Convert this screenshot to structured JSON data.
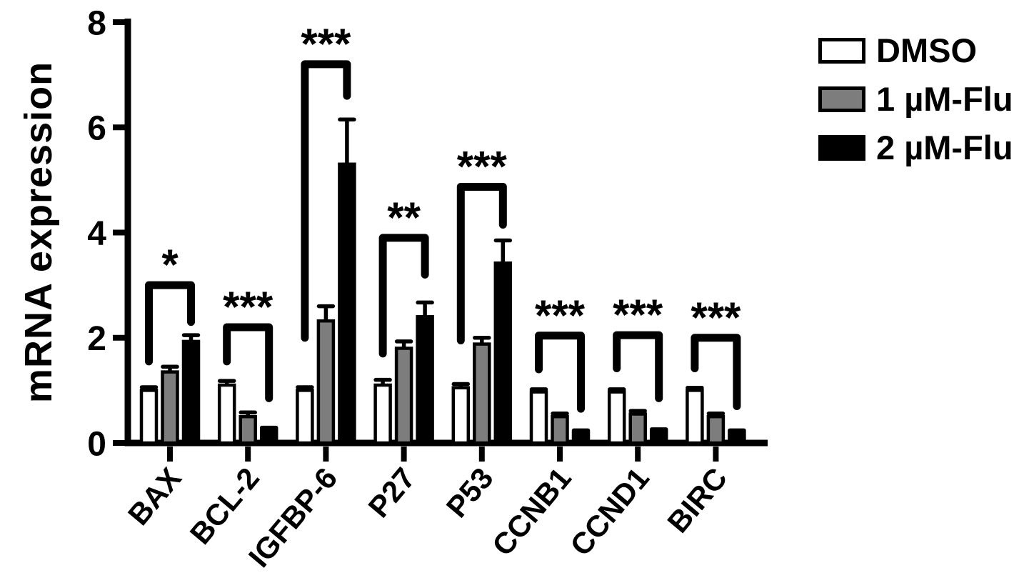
{
  "chart_data": {
    "type": "bar",
    "ylabel": "mRNA expression",
    "xlabel": "",
    "ylim": [
      0,
      8
    ],
    "yticks": [
      0,
      2,
      4,
      6,
      8
    ],
    "grid": false,
    "legend_position": "top-right",
    "categories": [
      "BAX",
      "BCL-2",
      "IGFBP-6",
      "P27",
      "P53",
      "CCNB1",
      "CCND1",
      "BIRC"
    ],
    "series": [
      {
        "name": "DMSO",
        "fill": "#ffffff",
        "values": [
          1.0,
          1.1,
          1.0,
          1.1,
          1.05,
          0.97,
          0.97,
          1.0
        ],
        "errors": [
          0.06,
          0.08,
          0.06,
          0.1,
          0.07,
          0.05,
          0.05,
          0.05
        ]
      },
      {
        "name": "1 µM-Flu",
        "fill": "#7d7d7d",
        "values": [
          1.35,
          0.5,
          2.32,
          1.8,
          1.88,
          0.5,
          0.55,
          0.5
        ],
        "errors": [
          0.1,
          0.08,
          0.28,
          0.13,
          0.12,
          0.06,
          0.06,
          0.06
        ]
      },
      {
        "name": "2 µM-Flu",
        "fill": "#000000",
        "values": [
          1.93,
          0.25,
          5.3,
          2.4,
          3.42,
          0.2,
          0.22,
          0.2
        ],
        "errors": [
          0.12,
          0.04,
          0.85,
          0.27,
          0.43,
          0.04,
          0.04,
          0.04
        ]
      }
    ],
    "significance": [
      {
        "category": "BAX",
        "stars": "*",
        "top": 3.0,
        "left_end": 1.55,
        "right_end": 2.3
      },
      {
        "category": "BCL-2",
        "stars": "***",
        "top": 2.2,
        "left_end": 1.55,
        "right_end": 0.85
      },
      {
        "category": "IGFBP-6",
        "stars": "***",
        "top": 7.2,
        "left_end": 2.0,
        "right_end": 6.6
      },
      {
        "category": "P27",
        "stars": "**",
        "top": 3.9,
        "left_end": 1.7,
        "right_end": 3.2
      },
      {
        "category": "P53",
        "stars": "***",
        "top": 4.87,
        "left_end": 1.95,
        "right_end": 4.15
      },
      {
        "category": "CCNB1",
        "stars": "***",
        "top": 2.04,
        "left_end": 1.4,
        "right_end": 0.65
      },
      {
        "category": "CCND1",
        "stars": "***",
        "top": 2.05,
        "left_end": 1.42,
        "right_end": 0.85
      },
      {
        "category": "BIRC",
        "stars": "***",
        "top": 2.0,
        "left_end": 1.42,
        "right_end": 0.7
      }
    ]
  }
}
